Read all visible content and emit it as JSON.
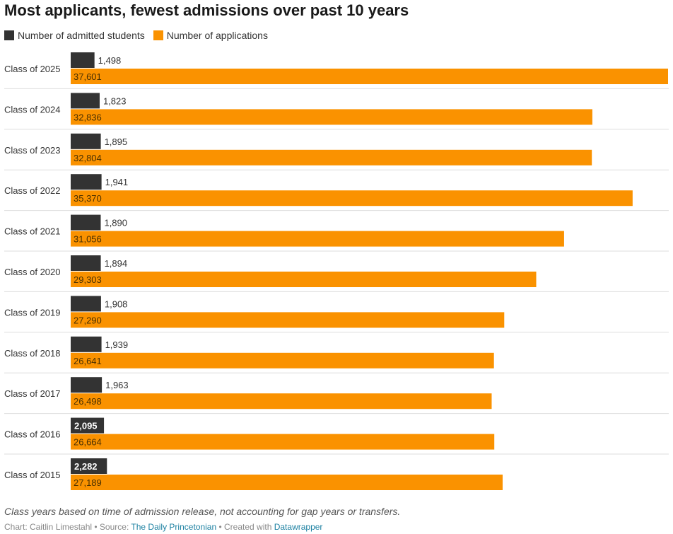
{
  "chart_data": {
    "type": "bar",
    "orientation": "horizontal",
    "title": "Most applicants, fewest admissions over past 10 years",
    "categories": [
      "Class of 2025",
      "Class of 2024",
      "Class of 2023",
      "Class of 2022",
      "Class of 2021",
      "Class of 2020",
      "Class of 2019",
      "Class of 2018",
      "Class of 2017",
      "Class of 2016",
      "Class of 2015"
    ],
    "series": [
      {
        "name": "Number of admitted students",
        "color": "#333333",
        "values": [
          1498,
          1823,
          1895,
          1941,
          1890,
          1894,
          1908,
          1939,
          1963,
          2095,
          2282
        ],
        "labels": [
          "1,498",
          "1,823",
          "1,895",
          "1,941",
          "1,890",
          "1,894",
          "1,908",
          "1,939",
          "1,963",
          "2,095",
          "2,282"
        ]
      },
      {
        "name": "Number of applications",
        "color": "#fa9200",
        "values": [
          37601,
          32836,
          32804,
          35370,
          31056,
          29303,
          27290,
          26641,
          26498,
          26664,
          27189
        ],
        "labels": [
          "37,601",
          "32,836",
          "32,804",
          "35,370",
          "31,056",
          "29,303",
          "27,290",
          "26,641",
          "26,498",
          "26,664",
          "27,189"
        ]
      }
    ],
    "xlim": [
      0,
      37601
    ],
    "grid": false,
    "legend": "top-left"
  },
  "notes": "Class years based on time of admission release, not accounting for gap years or transfers.",
  "byline": {
    "chart_by": "Chart: Caitlin Limestahl",
    "sep1": " • Source: ",
    "source": "The Daily Princetonian",
    "sep2": " • Created with ",
    "tool": "Datawrapper"
  }
}
